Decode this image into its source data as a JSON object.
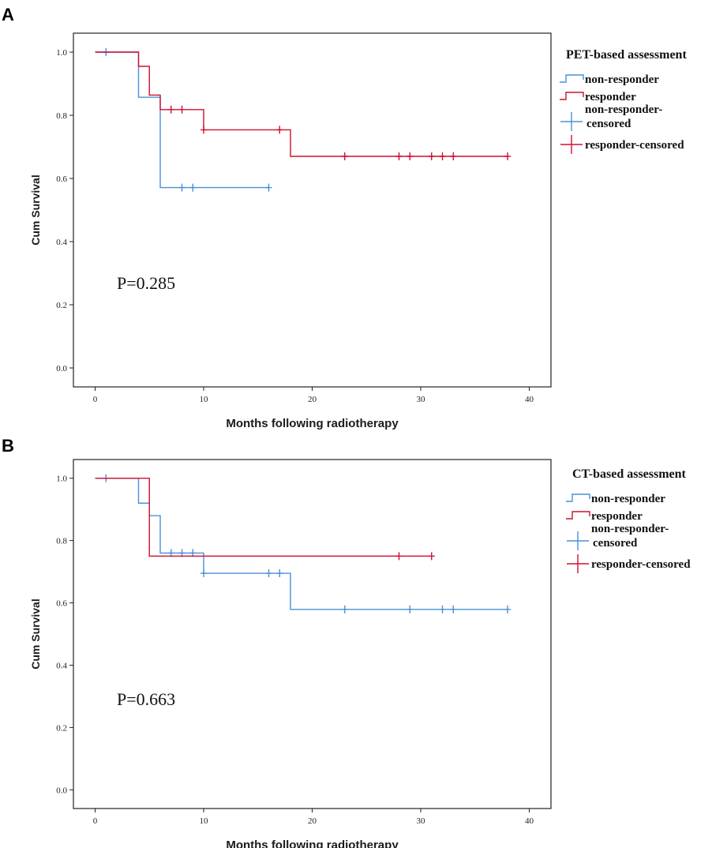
{
  "colors": {
    "non_responder": "#4a90d9",
    "responder": "#d0102e"
  },
  "chart_data": [
    {
      "panel": "A",
      "type": "line",
      "subtype": "kaplan-meier",
      "legend_title": "PET-based assessment",
      "legend": [
        "non-responder",
        "responder",
        "non-responder-censored",
        "responder-censored"
      ],
      "xlabel": "Months following radiotherapy",
      "ylabel": "Cum Survival",
      "xlim": [
        -2,
        42
      ],
      "ylim": [
        -0.06,
        1.06
      ],
      "xticks": [
        "0",
        "10",
        "20",
        "30",
        "40"
      ],
      "yticks": [
        "0.0",
        "0.2",
        "0.4",
        "0.6",
        "0.8",
        "1.0"
      ],
      "pvalue": "P=0.285",
      "series": [
        {
          "name": "non-responder",
          "steps": [
            [
              0,
              1.0
            ],
            [
              4,
              0.857
            ],
            [
              6,
              0.571
            ],
            [
              16,
              0.571
            ]
          ],
          "censored": [
            [
              1,
              1.0
            ],
            [
              8,
              0.571
            ],
            [
              9,
              0.571
            ],
            [
              16,
              0.571
            ]
          ]
        },
        {
          "name": "responder",
          "steps": [
            [
              0,
              1.0
            ],
            [
              4,
              0.955
            ],
            [
              5,
              0.864
            ],
            [
              6,
              0.818
            ],
            [
              10,
              0.754
            ],
            [
              18,
              0.67
            ],
            [
              38,
              0.67
            ]
          ],
          "censored": [
            [
              7,
              0.818
            ],
            [
              8,
              0.818
            ],
            [
              10,
              0.754
            ],
            [
              17,
              0.754
            ],
            [
              23,
              0.67
            ],
            [
              28,
              0.67
            ],
            [
              29,
              0.67
            ],
            [
              31,
              0.67
            ],
            [
              32,
              0.67
            ],
            [
              33,
              0.67
            ],
            [
              38,
              0.67
            ]
          ]
        }
      ]
    },
    {
      "panel": "B",
      "type": "line",
      "subtype": "kaplan-meier",
      "legend_title": "CT-based assessment",
      "legend": [
        "non-responder",
        "responder",
        "non-responder-censored",
        "responder-censored"
      ],
      "xlabel": "Months following radiotherapy",
      "ylabel": "Cum Survival",
      "xlim": [
        -2,
        42
      ],
      "ylim": [
        -0.06,
        1.06
      ],
      "xticks": [
        "0",
        "10",
        "20",
        "30",
        "40"
      ],
      "yticks": [
        "0.0",
        "0.2",
        "0.4",
        "0.6",
        "0.8",
        "1.0"
      ],
      "pvalue": "P=0.663",
      "series": [
        {
          "name": "non-responder",
          "steps": [
            [
              0,
              1.0
            ],
            [
              4,
              0.92
            ],
            [
              5,
              0.88
            ],
            [
              6,
              0.76
            ],
            [
              10,
              0.695
            ],
            [
              18,
              0.579
            ],
            [
              38,
              0.579
            ]
          ],
          "censored": [
            [
              1,
              1.0
            ],
            [
              7,
              0.76
            ],
            [
              8,
              0.76
            ],
            [
              9,
              0.76
            ],
            [
              10,
              0.695
            ],
            [
              16,
              0.695
            ],
            [
              17,
              0.695
            ],
            [
              23,
              0.579
            ],
            [
              29,
              0.579
            ],
            [
              32,
              0.579
            ],
            [
              33,
              0.579
            ],
            [
              38,
              0.579
            ]
          ]
        },
        {
          "name": "responder",
          "steps": [
            [
              0,
              1.0
            ],
            [
              5,
              0.75
            ],
            [
              31,
              0.75
            ]
          ],
          "censored": [
            [
              28,
              0.75
            ],
            [
              31,
              0.75
            ]
          ]
        }
      ]
    }
  ]
}
